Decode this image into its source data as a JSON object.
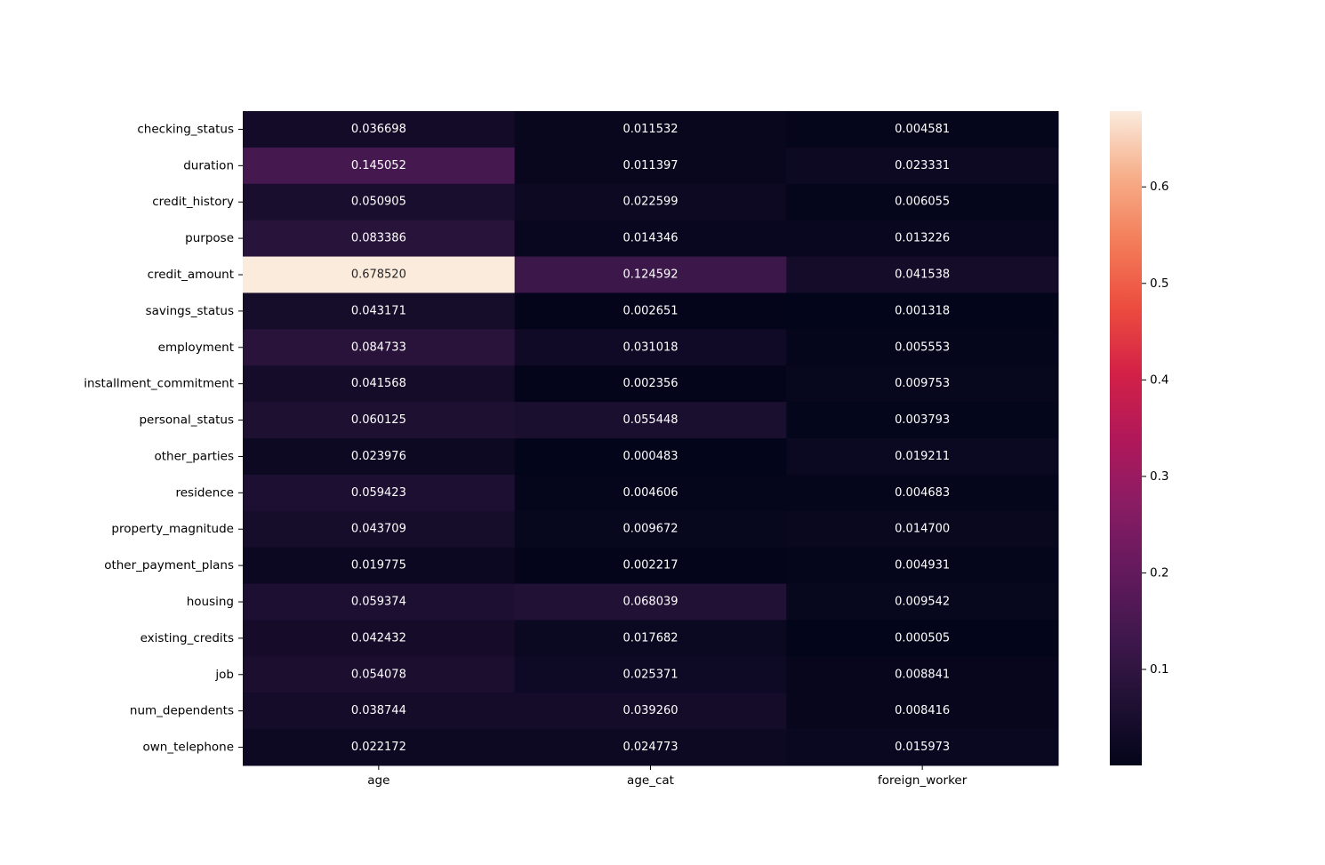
{
  "chart_data": {
    "type": "heatmap",
    "title": "",
    "xlabel": "",
    "ylabel": "",
    "columns": [
      "age",
      "age_cat",
      "foreign_worker"
    ],
    "rows": [
      "checking_status",
      "duration",
      "credit_history",
      "purpose",
      "credit_amount",
      "savings_status",
      "employment",
      "installment_commitment",
      "personal_status",
      "other_parties",
      "residence",
      "property_magnitude",
      "other_payment_plans",
      "housing",
      "existing_credits",
      "job",
      "num_dependents",
      "own_telephone"
    ],
    "values": [
      [
        0.036698,
        0.011532,
        0.004581
      ],
      [
        0.145052,
        0.011397,
        0.023331
      ],
      [
        0.050905,
        0.022599,
        0.006055
      ],
      [
        0.083386,
        0.014346,
        0.013226
      ],
      [
        0.67852,
        0.124592,
        0.041538
      ],
      [
        0.043171,
        0.002651,
        0.001318
      ],
      [
        0.084733,
        0.031018,
        0.005553
      ],
      [
        0.041568,
        0.002356,
        0.009753
      ],
      [
        0.060125,
        0.055448,
        0.003793
      ],
      [
        0.023976,
        0.000483,
        0.019211
      ],
      [
        0.059423,
        0.004606,
        0.004683
      ],
      [
        0.043709,
        0.009672,
        0.0147
      ],
      [
        0.019775,
        0.002217,
        0.004931
      ],
      [
        0.059374,
        0.068039,
        0.009542
      ],
      [
        0.042432,
        0.017682,
        0.000505
      ],
      [
        0.054078,
        0.025371,
        0.008841
      ],
      [
        0.038744,
        0.03926,
        0.008416
      ],
      [
        0.022172,
        0.024773,
        0.015973
      ]
    ],
    "value_labels": [
      [
        "0.036698",
        "0.011532",
        "0.004581"
      ],
      [
        "0.145052",
        "0.011397",
        "0.023331"
      ],
      [
        "0.050905",
        "0.022599",
        "0.006055"
      ],
      [
        "0.083386",
        "0.014346",
        "0.013226"
      ],
      [
        "0.678520",
        "0.124592",
        "0.041538"
      ],
      [
        "0.043171",
        "0.002651",
        "0.001318"
      ],
      [
        "0.084733",
        "0.031018",
        "0.005553"
      ],
      [
        "0.041568",
        "0.002356",
        "0.009753"
      ],
      [
        "0.060125",
        "0.055448",
        "0.003793"
      ],
      [
        "0.023976",
        "0.000483",
        "0.019211"
      ],
      [
        "0.059423",
        "0.004606",
        "0.004683"
      ],
      [
        "0.043709",
        "0.009672",
        "0.014700"
      ],
      [
        "0.019775",
        "0.002217",
        "0.004931"
      ],
      [
        "0.059374",
        "0.068039",
        "0.009542"
      ],
      [
        "0.042432",
        "0.017682",
        "0.000505"
      ],
      [
        "0.054078",
        "0.025371",
        "0.008841"
      ],
      [
        "0.038744",
        "0.039260",
        "0.008416"
      ],
      [
        "0.022172",
        "0.024773",
        "0.015973"
      ]
    ],
    "colormap": "rocket",
    "color_range": [
      0.000483,
      0.67852
    ],
    "colorbar": {
      "ticks": [
        0.1,
        0.2,
        0.3,
        0.4,
        0.5,
        0.6
      ],
      "tick_labels": [
        "0.1",
        "0.2",
        "0.3",
        "0.4",
        "0.5",
        "0.6"
      ],
      "position": "right"
    },
    "annotation_colors": {
      "dark_cell_text": "#ffffff",
      "light_cell_text": "#262626"
    },
    "grid": false
  }
}
